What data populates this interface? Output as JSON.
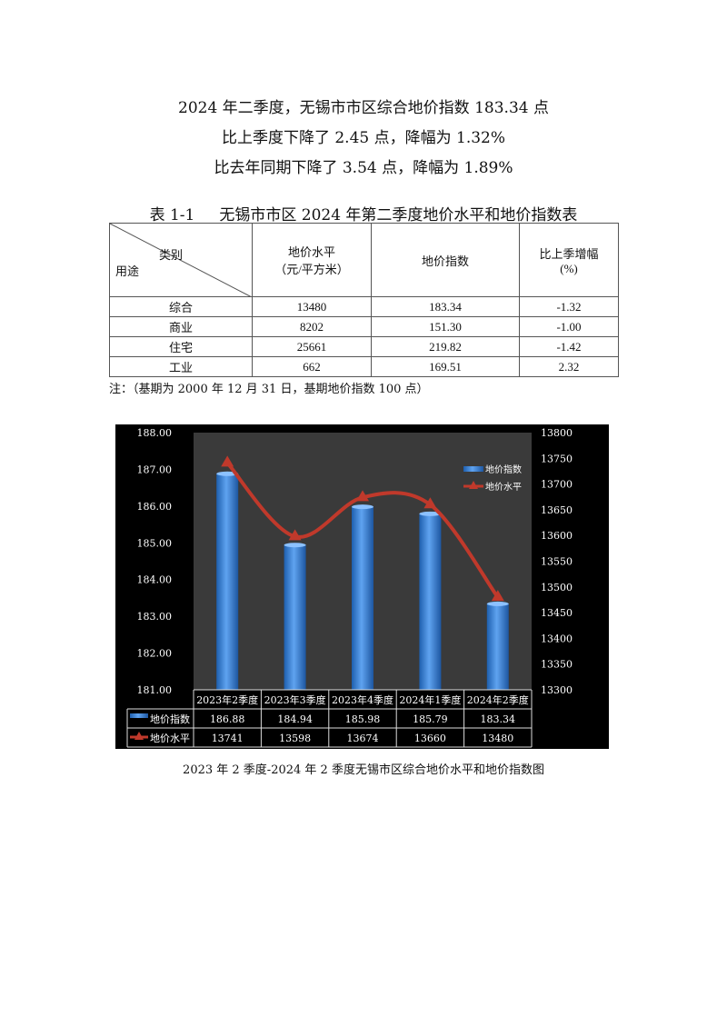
{
  "headline": [
    "2024 年二季度，无锡市市区综合地价指数 183.34 点",
    "比上季度下降了 2.45 点，降幅为 1.32%",
    "比去年同期下降了 3.54 点，降幅为 1.89%"
  ],
  "table": {
    "title": "表 1-1     无锡市市区 2024 年第二季度地价水平和地价指数表",
    "corner_top": "类别",
    "corner_bottom": "用途",
    "headers": [
      [
        "地价水平",
        "（元/平方米）"
      ],
      [
        "地价指数"
      ],
      [
        "比上季增幅",
        "(%)"
      ]
    ],
    "rows": [
      [
        "综合",
        "13480",
        "183.34",
        "-1.32"
      ],
      [
        "商业",
        "8202",
        "151.30",
        "-1.00"
      ],
      [
        "住宅",
        "25661",
        "219.82",
        "-1.42"
      ],
      [
        "工业",
        "662",
        "169.51",
        "2.32"
      ]
    ],
    "note": "注：（基期为 2000 年 12 月 31 日，基期地价指数 100 点）"
  },
  "chart_data": {
    "type": "bar+line",
    "categories": [
      "2023年2季度",
      "2023年3季度",
      "2023年4季度",
      "2024年1季度",
      "2024年2季度"
    ],
    "series": [
      {
        "name": "地价指数",
        "type": "bar",
        "axis": "left",
        "values": [
          186.88,
          184.94,
          185.98,
          185.79,
          183.34
        ],
        "color": "#3a7fd5"
      },
      {
        "name": "地价水平",
        "type": "line",
        "axis": "right",
        "values": [
          13741,
          13598,
          13674,
          13660,
          13480
        ],
        "color": "#c0392b"
      }
    ],
    "y_left": {
      "range": [
        181,
        188
      ],
      "ticks": [
        "181.00",
        "182.00",
        "183.00",
        "184.00",
        "185.00",
        "186.00",
        "187.00",
        "188.00"
      ]
    },
    "y_right": {
      "range": [
        13300,
        13800
      ],
      "ticks": [
        "13300",
        "13350",
        "13400",
        "13450",
        "13500",
        "13550",
        "13600",
        "13650",
        "13700",
        "13750",
        "13800"
      ]
    },
    "legend": "top-right",
    "data_table": true,
    "background": "#000000",
    "plot_background": "#3a3a3a"
  },
  "caption": "2023 年 2 季度-2024 年 2 季度无锡市区综合地价水平和地价指数图"
}
